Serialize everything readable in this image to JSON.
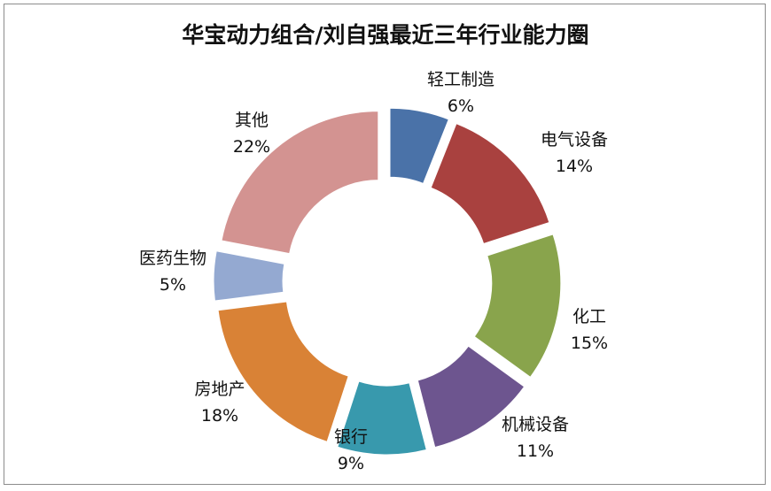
{
  "chart_data": {
    "type": "pie",
    "variant": "exploded-donut",
    "title": "华宝动力组合/刘自强最近三年行业能力圈",
    "slices": [
      {
        "label": "轻工制造",
        "pct_label": "6%",
        "value": 6,
        "color": "#4a72a8"
      },
      {
        "label": "电气设备",
        "pct_label": "14%",
        "value": 14,
        "color": "#a9413f"
      },
      {
        "label": "化工",
        "pct_label": "15%",
        "value": 15,
        "color": "#89a44c"
      },
      {
        "label": "机械设备",
        "pct_label": "11%",
        "value": 11,
        "color": "#6d558f"
      },
      {
        "label": "银行",
        "pct_label": "9%",
        "value": 9,
        "color": "#3899ad"
      },
      {
        "label": "房地产",
        "pct_label": "18%",
        "value": 18,
        "color": "#d98236"
      },
      {
        "label": "医药生物",
        "pct_label": "5%",
        "value": 5,
        "color": "#94a9d1"
      },
      {
        "label": "其他",
        "pct_label": "22%",
        "value": 22,
        "color": "#d39391"
      }
    ]
  }
}
